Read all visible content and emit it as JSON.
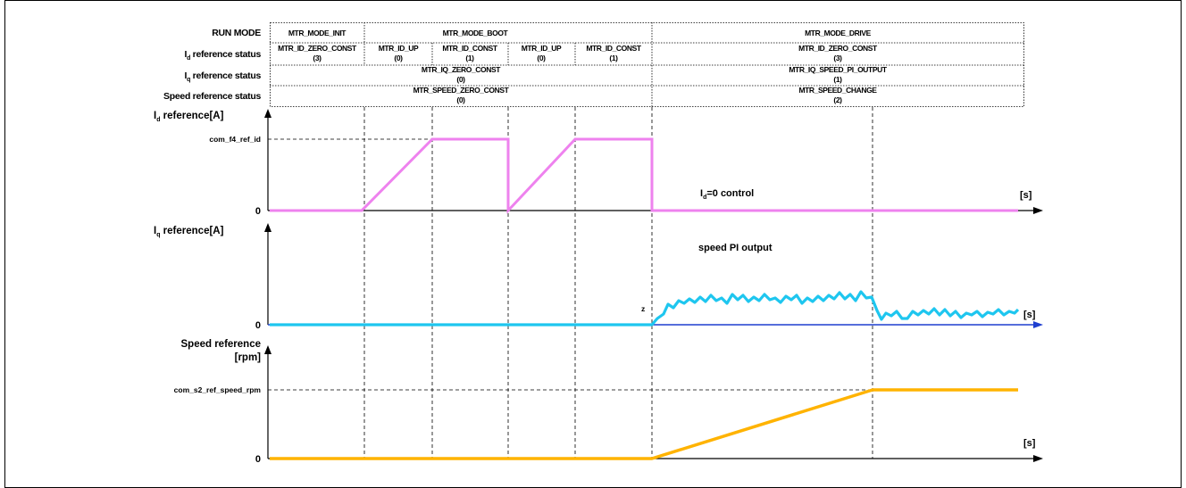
{
  "header": {
    "row_labels": {
      "run_mode": "RUN MODE",
      "id_status": {
        "prefix": "I",
        "sub": "d",
        "suffix": " reference status"
      },
      "iq_status": {
        "prefix": "I",
        "sub": "q",
        "suffix": " reference status"
      },
      "speed_status": "Speed reference status"
    },
    "run_mode": {
      "init": "MTR_MODE_INIT",
      "boot": "MTR_MODE_BOOT",
      "drive": "MTR_MODE_DRIVE"
    },
    "id_status": [
      {
        "name": "MTR_ID_ZERO_CONST",
        "code": "(3)"
      },
      {
        "name": "MTR_ID_UP",
        "code": "(0)"
      },
      {
        "name": "MTR_ID_CONST",
        "code": "(1)"
      },
      {
        "name": "MTR_ID_UP",
        "code": "(0)"
      },
      {
        "name": "MTR_ID_CONST",
        "code": "(1)"
      },
      {
        "name": "MTR_ID_ZERO_CONST",
        "code": "(3)"
      }
    ],
    "iq_status": [
      {
        "name": "MTR_IQ_ZERO_CONST",
        "code": "(0)"
      },
      {
        "name": "MTR_IQ_SPEED_PI_OUTPUT",
        "code": "(1)"
      }
    ],
    "speed_status": [
      {
        "name": "MTR_SPEED_ZERO_CONST",
        "code": "(0)"
      },
      {
        "name": "MTR_SPEED_CHANGE",
        "code": "(2)"
      }
    ]
  },
  "plots": {
    "id": {
      "ylabel": {
        "prefix": "I",
        "sub": "d",
        "suffix": " reference[A]"
      },
      "level_label": "com_f4_ref_id",
      "zero": "0",
      "unit": "[s]",
      "annotation": {
        "prefix": "I",
        "sub": "d",
        "suffix": "=0 control"
      }
    },
    "iq": {
      "ylabel": {
        "prefix": "I",
        "sub": "q",
        "suffix": " reference[A]"
      },
      "zero": "0",
      "unit": "[s]",
      "annotation": "speed PI output",
      "marker": "z"
    },
    "speed": {
      "ylabel_line1": "Speed reference",
      "ylabel_line2": "[rpm]",
      "level_label": "com_s2_ref_speed_rpm",
      "zero": "0",
      "unit": "[s]"
    }
  },
  "colors": {
    "id_trace": "#ee82ee",
    "iq_trace": "#1ec6ef",
    "speed_trace": "#ffb300",
    "iq_axis": "#1f3fcf"
  }
}
